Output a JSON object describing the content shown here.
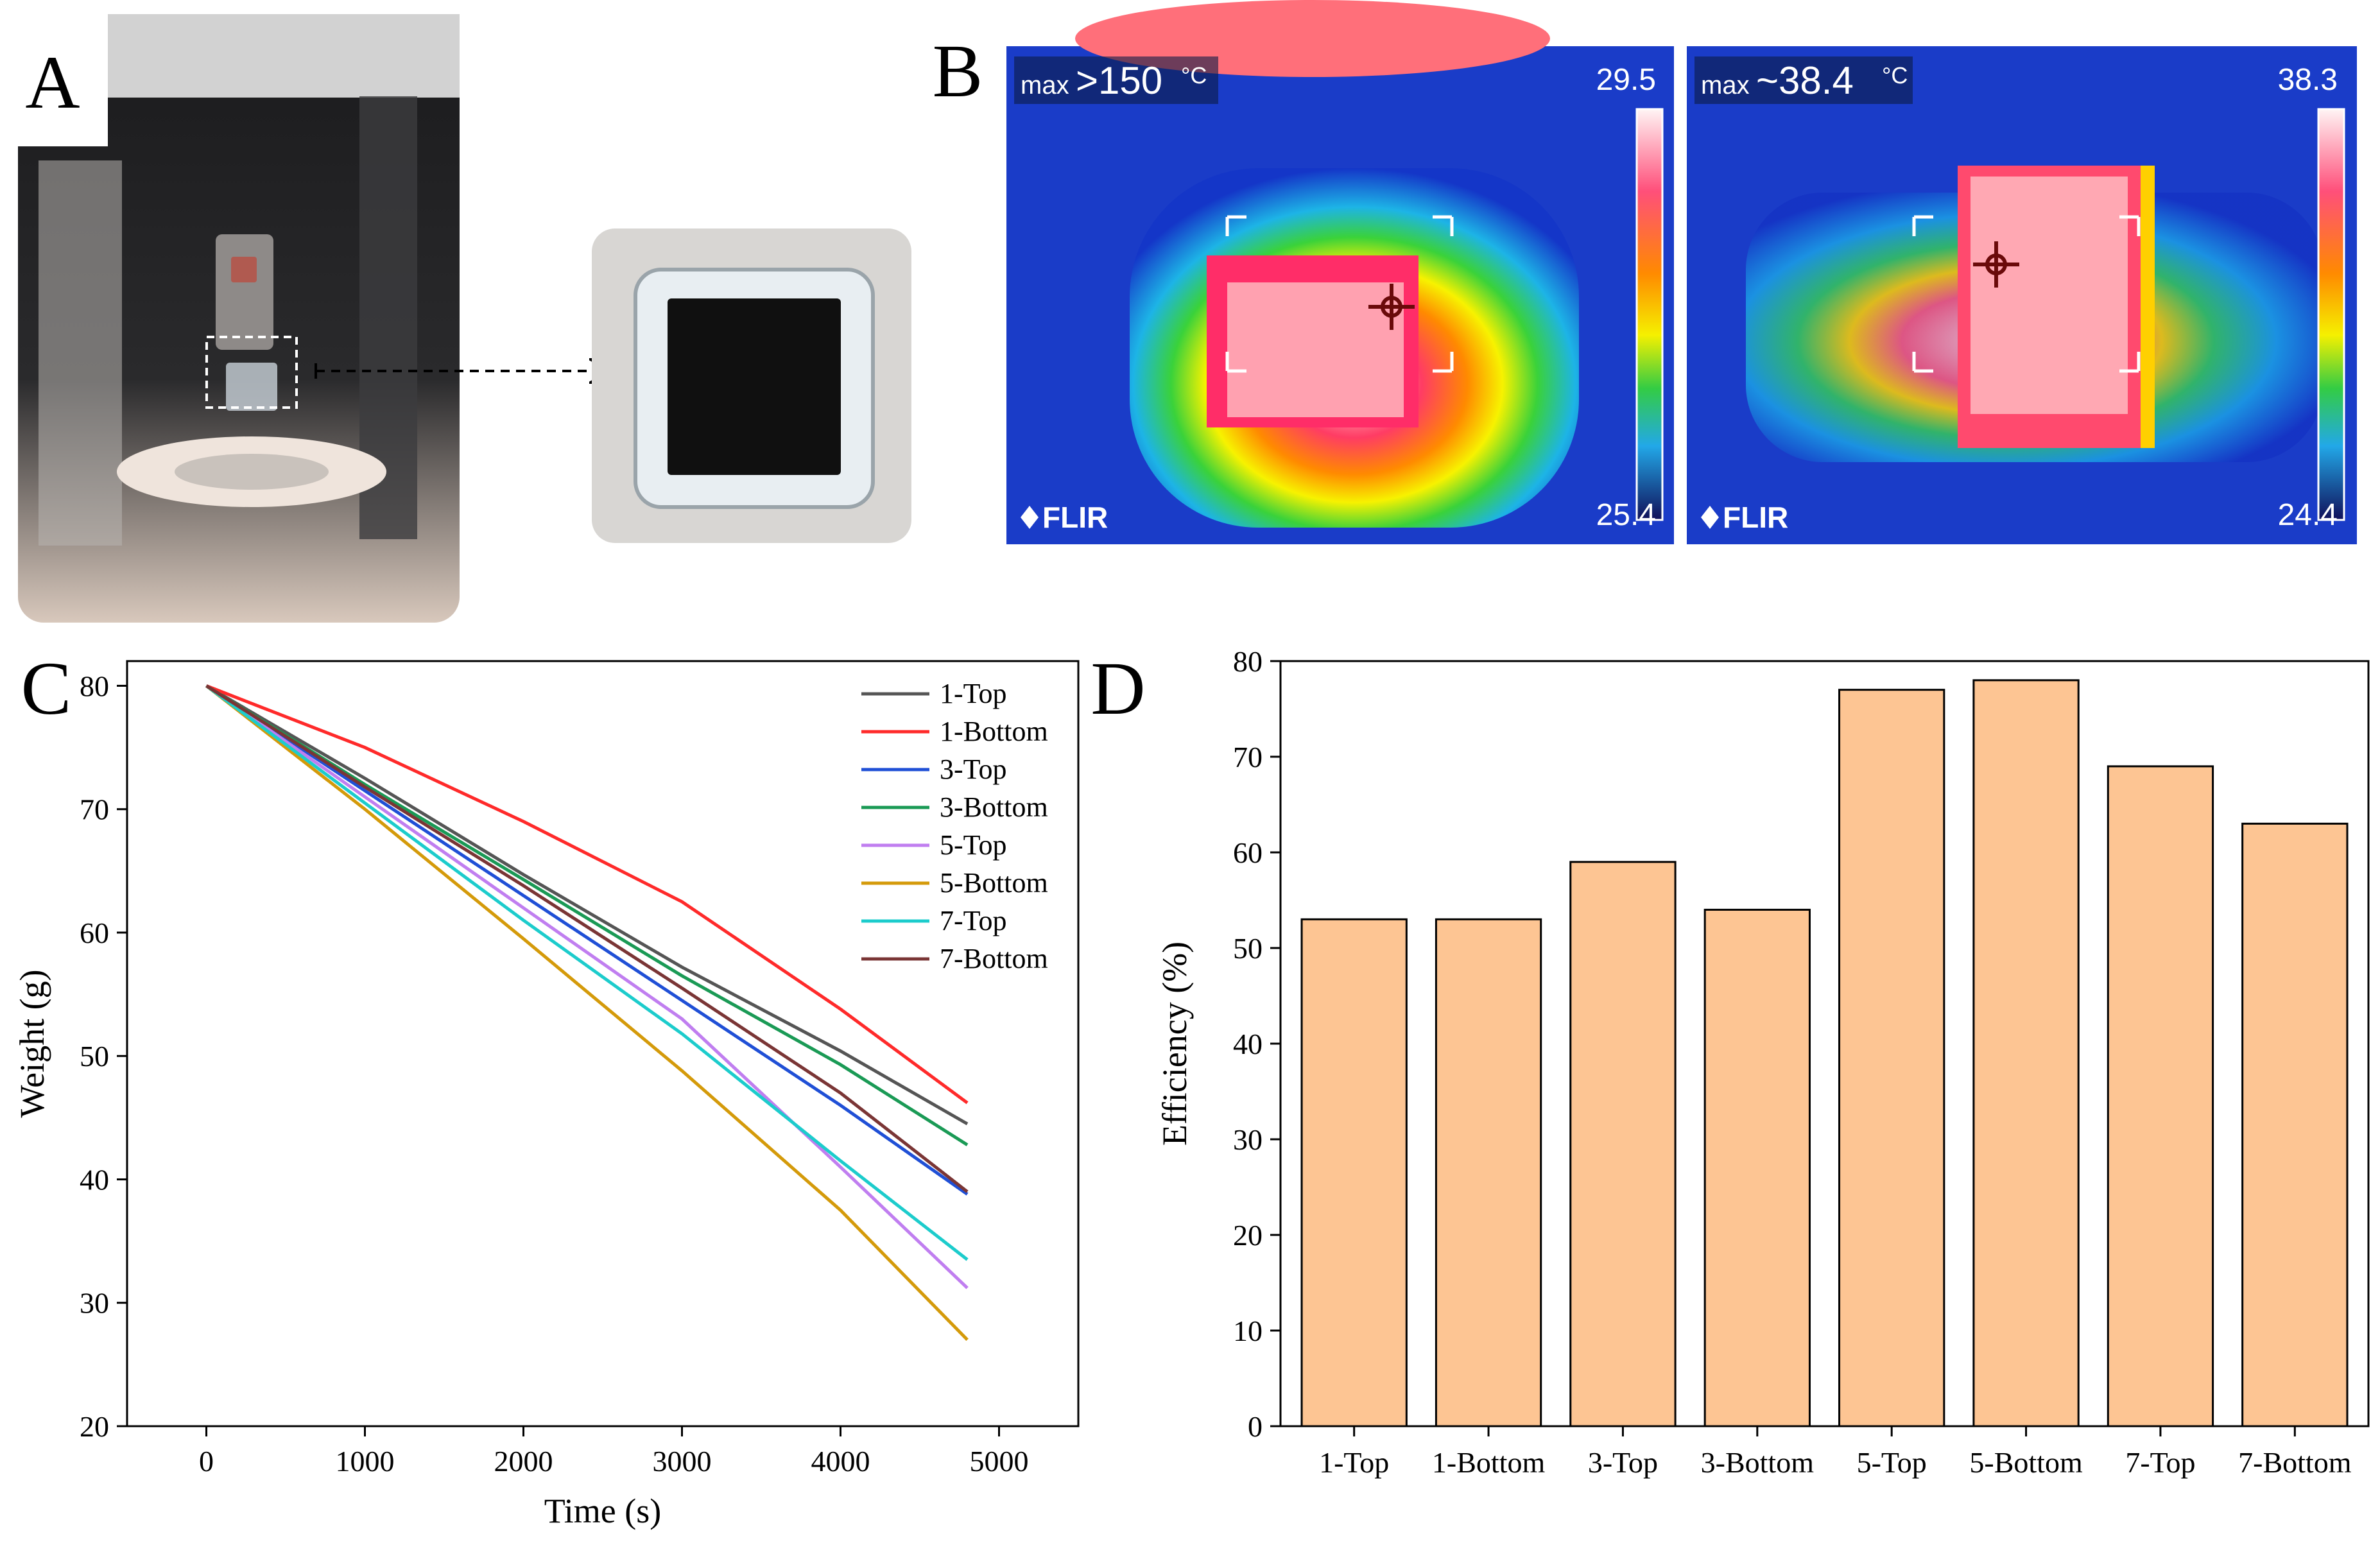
{
  "panels": {
    "a": {
      "letter": "A"
    },
    "b": {
      "letter": "B",
      "left_image": {
        "max_prefix": "max",
        "max_value": ">150",
        "unit": "°C",
        "scale_top": "29.5",
        "scale_bottom": "25.4",
        "brand": "FLIR"
      },
      "right_image": {
        "max_prefix": "max",
        "max_value": "~38.4",
        "unit": "°C",
        "scale_top": "38.3",
        "scale_bottom": "24.4",
        "brand": "FLIR"
      }
    },
    "c": {
      "letter": "C"
    },
    "d": {
      "letter": "D"
    }
  },
  "chart_data": [
    {
      "type": "line",
      "xlabel": "Time (s)",
      "ylabel": "Weight (g)",
      "xlim": [
        -500,
        5500
      ],
      "ylim": [
        20,
        82
      ],
      "xticks": [
        0,
        1000,
        2000,
        3000,
        4000,
        5000
      ],
      "yticks": [
        20,
        30,
        40,
        50,
        60,
        70,
        80
      ],
      "grid": false,
      "legend": "top-right",
      "series": [
        {
          "name": "1-Top",
          "color": "#555555",
          "x": [
            0,
            1000,
            2000,
            3000,
            4000,
            4800
          ],
          "y": [
            80,
            72.5,
            64.7,
            57.2,
            50.4,
            44.5
          ]
        },
        {
          "name": "1-Bottom",
          "color": "#ff2a2a",
          "x": [
            0,
            1000,
            2000,
            3000,
            4000,
            4800
          ],
          "y": [
            80,
            75.0,
            69.0,
            62.5,
            53.8,
            46.2
          ]
        },
        {
          "name": "3-Top",
          "color": "#1f4fd6",
          "x": [
            0,
            1000,
            2000,
            3000,
            4000,
            4800
          ],
          "y": [
            80,
            71.5,
            63.0,
            54.5,
            46.0,
            38.8
          ]
        },
        {
          "name": "3-Bottom",
          "color": "#1a9a55",
          "x": [
            0,
            1000,
            2000,
            3000,
            4000,
            4800
          ],
          "y": [
            80,
            72.0,
            64.3,
            56.5,
            49.3,
            42.8
          ]
        },
        {
          "name": "5-Top",
          "color": "#c07ef0",
          "x": [
            0,
            1000,
            2000,
            3000,
            4000,
            4800
          ],
          "y": [
            80,
            71.0,
            62.0,
            53.0,
            41.0,
            31.2
          ]
        },
        {
          "name": "5-Bottom",
          "color": "#d49a0a",
          "x": [
            0,
            1000,
            2000,
            3000,
            4000,
            4800
          ],
          "y": [
            80,
            70.0,
            59.5,
            48.8,
            37.5,
            27.0
          ]
        },
        {
          "name": "7-Top",
          "color": "#1ccccc",
          "x": [
            0,
            1000,
            2000,
            3000,
            4000,
            4800
          ],
          "y": [
            80,
            70.5,
            61.0,
            51.8,
            41.5,
            33.5
          ]
        },
        {
          "name": "7-Bottom",
          "color": "#7a3535",
          "x": [
            0,
            1000,
            2000,
            3000,
            4000,
            4800
          ],
          "y": [
            80,
            71.8,
            63.8,
            55.5,
            47.0,
            39.0
          ]
        }
      ]
    },
    {
      "type": "bar",
      "xlabel": "",
      "ylabel": "Efficiency (%)",
      "ylim": [
        0,
        80
      ],
      "yticks": [
        0,
        10,
        20,
        30,
        40,
        50,
        60,
        70,
        80
      ],
      "grid": false,
      "bar_color": "#fdc593",
      "categories": [
        "1-Top",
        "1-Bottom",
        "3-Top",
        "3-Bottom",
        "5-Top",
        "5-Bottom",
        "7-Top",
        "7-Bottom"
      ],
      "values": [
        53,
        53,
        59,
        54,
        77,
        78,
        69,
        63
      ]
    }
  ]
}
